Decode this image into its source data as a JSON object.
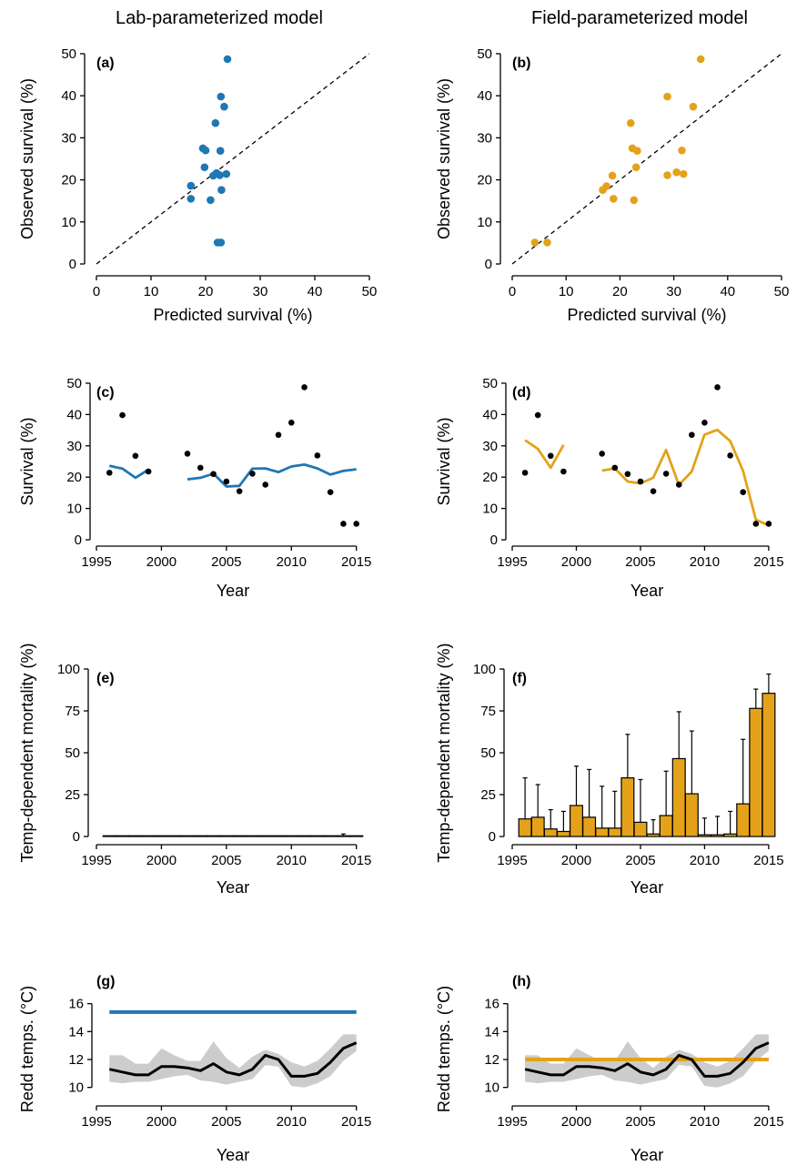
{
  "column_titles": [
    "Lab-parameterized model",
    "Field-parameterized model"
  ],
  "colors": {
    "lab": "#1f77b4",
    "field": "#e3a21a",
    "observed": "#000000",
    "band": "#cccccc"
  },
  "chart_data": [
    {
      "id": "a",
      "label": "(a)",
      "type": "scatter",
      "xlabel": "Predicted survival (%)",
      "ylabel": "Observed survival (%)",
      "xlim": [
        0,
        50
      ],
      "ylim": [
        0,
        50
      ],
      "xticks": [
        0,
        10,
        20,
        30,
        40,
        50
      ],
      "yticks": [
        0,
        10,
        20,
        30,
        40,
        50
      ],
      "reference_line": "1:1 dashed",
      "color_key": "lab",
      "points": [
        [
          24.0,
          48.7
        ],
        [
          22.8,
          39.8
        ],
        [
          23.4,
          37.4
        ],
        [
          21.8,
          33.5
        ],
        [
          19.5,
          27.5
        ],
        [
          20.0,
          27.0
        ],
        [
          22.7,
          26.9
        ],
        [
          22.0,
          21.6
        ],
        [
          23.8,
          21.4
        ],
        [
          22.6,
          21.1
        ],
        [
          21.4,
          21.0
        ],
        [
          19.8,
          23.0
        ],
        [
          17.3,
          18.6
        ],
        [
          22.9,
          17.6
        ],
        [
          17.3,
          15.5
        ],
        [
          20.9,
          15.2
        ],
        [
          22.2,
          5.1
        ],
        [
          22.8,
          5.1
        ]
      ]
    },
    {
      "id": "b",
      "label": "(b)",
      "type": "scatter",
      "xlabel": "Predicted survival (%)",
      "ylabel": "Observed survival (%)",
      "xlim": [
        0,
        50
      ],
      "ylim": [
        0,
        50
      ],
      "xticks": [
        0,
        10,
        20,
        30,
        40,
        50
      ],
      "yticks": [
        0,
        10,
        20,
        30,
        40,
        50
      ],
      "reference_line": "1:1 dashed",
      "color_key": "field",
      "points": [
        [
          35.0,
          48.7
        ],
        [
          28.8,
          39.8
        ],
        [
          33.6,
          37.4
        ],
        [
          22.0,
          33.5
        ],
        [
          22.3,
          27.5
        ],
        [
          23.2,
          26.9
        ],
        [
          31.5,
          27.0
        ],
        [
          23.0,
          23.0
        ],
        [
          18.6,
          21.0
        ],
        [
          28.8,
          21.1
        ],
        [
          30.5,
          21.8
        ],
        [
          31.8,
          21.4
        ],
        [
          17.5,
          18.5
        ],
        [
          16.8,
          17.6
        ],
        [
          18.8,
          15.5
        ],
        [
          22.6,
          15.2
        ],
        [
          4.2,
          5.1
        ],
        [
          6.5,
          5.1
        ]
      ]
    },
    {
      "id": "c",
      "label": "(c)",
      "type": "line",
      "xlabel": "Year",
      "ylabel": "Survival (%)",
      "xlim": [
        1995,
        2016
      ],
      "ylim": [
        0,
        50
      ],
      "xticks": [
        1995,
        2000,
        2005,
        2010,
        2015
      ],
      "yticks": [
        0,
        10,
        20,
        30,
        40,
        50
      ],
      "color_key": "lab",
      "observed": [
        [
          1996,
          21.4
        ],
        [
          1997,
          39.8
        ],
        [
          1998,
          26.8
        ],
        [
          1999,
          21.8
        ],
        [
          2002,
          27.5
        ],
        [
          2003,
          23.0
        ],
        [
          2004,
          21.0
        ],
        [
          2005,
          18.6
        ],
        [
          2006,
          15.5
        ],
        [
          2007,
          21.1
        ],
        [
          2008,
          17.6
        ],
        [
          2009,
          33.5
        ],
        [
          2010,
          37.4
        ],
        [
          2011,
          48.7
        ],
        [
          2012,
          26.9
        ],
        [
          2013,
          15.2
        ],
        [
          2014,
          5.1
        ],
        [
          2015,
          5.1
        ]
      ],
      "predicted_segments": [
        [
          [
            1996,
            23.6
          ],
          [
            1997,
            22.7
          ],
          [
            1998,
            19.8
          ],
          [
            1999,
            22.4
          ]
        ],
        [
          [
            2002,
            19.3
          ],
          [
            2003,
            19.8
          ],
          [
            2004,
            21.1
          ],
          [
            2005,
            17.0
          ],
          [
            2006,
            17.2
          ],
          [
            2007,
            22.7
          ],
          [
            2008,
            22.8
          ],
          [
            2009,
            21.6
          ],
          [
            2010,
            23.4
          ],
          [
            2011,
            24.0
          ],
          [
            2012,
            22.8
          ],
          [
            2013,
            20.8
          ],
          [
            2014,
            22.0
          ],
          [
            2015,
            22.5
          ]
        ]
      ]
    },
    {
      "id": "d",
      "label": "(d)",
      "type": "line",
      "xlabel": "Year",
      "ylabel": "Survival (%)",
      "xlim": [
        1995,
        2016
      ],
      "ylim": [
        0,
        50
      ],
      "xticks": [
        1995,
        2000,
        2005,
        2010,
        2015
      ],
      "yticks": [
        0,
        10,
        20,
        30,
        40,
        50
      ],
      "color_key": "field",
      "observed": [
        [
          1996,
          21.4
        ],
        [
          1997,
          39.8
        ],
        [
          1998,
          26.8
        ],
        [
          1999,
          21.8
        ],
        [
          2002,
          27.5
        ],
        [
          2003,
          23.0
        ],
        [
          2004,
          21.0
        ],
        [
          2005,
          18.6
        ],
        [
          2006,
          15.5
        ],
        [
          2007,
          21.1
        ],
        [
          2008,
          17.6
        ],
        [
          2009,
          33.5
        ],
        [
          2010,
          37.4
        ],
        [
          2011,
          48.7
        ],
        [
          2012,
          26.9
        ],
        [
          2013,
          15.2
        ],
        [
          2014,
          5.1
        ],
        [
          2015,
          5.1
        ]
      ],
      "predicted_segments": [
        [
          [
            1996,
            31.8
          ],
          [
            1997,
            29.0
          ],
          [
            1998,
            23.0
          ],
          [
            1999,
            30.3
          ]
        ],
        [
          [
            2002,
            22.1
          ],
          [
            2003,
            22.8
          ],
          [
            2004,
            18.6
          ],
          [
            2005,
            18.0
          ],
          [
            2006,
            19.8
          ],
          [
            2007,
            28.7
          ],
          [
            2008,
            17.5
          ],
          [
            2009,
            21.8
          ],
          [
            2010,
            33.6
          ],
          [
            2011,
            35.1
          ],
          [
            2012,
            31.5
          ],
          [
            2013,
            22.0
          ],
          [
            2014,
            6.4
          ],
          [
            2015,
            4.6
          ]
        ]
      ]
    },
    {
      "id": "e",
      "label": "(e)",
      "type": "bar",
      "xlabel": "Year",
      "ylabel": "Temp-dependent mortality (%)",
      "xlim": [
        1995,
        2016
      ],
      "ylim": [
        0,
        100
      ],
      "xticks": [
        1995,
        2000,
        2005,
        2010,
        2015
      ],
      "yticks": [
        0,
        25,
        50,
        75,
        100
      ],
      "color_key": "lab",
      "bars": [
        [
          1996,
          0,
          0
        ],
        [
          1997,
          0,
          0
        ],
        [
          1998,
          0,
          0
        ],
        [
          1999,
          0,
          0
        ],
        [
          2000,
          0,
          0
        ],
        [
          2001,
          0,
          0
        ],
        [
          2002,
          0,
          0
        ],
        [
          2003,
          0,
          0
        ],
        [
          2004,
          0,
          0
        ],
        [
          2005,
          0,
          0
        ],
        [
          2006,
          0,
          0
        ],
        [
          2007,
          0,
          0
        ],
        [
          2008,
          0,
          0
        ],
        [
          2009,
          0,
          0
        ],
        [
          2010,
          0,
          0
        ],
        [
          2011,
          0,
          0
        ],
        [
          2012,
          0,
          0
        ],
        [
          2013,
          0,
          0
        ],
        [
          2014,
          0.4,
          1.5
        ],
        [
          2015,
          0,
          0
        ]
      ]
    },
    {
      "id": "f",
      "label": "(f)",
      "type": "bar",
      "xlabel": "Year",
      "ylabel": "Temp-dependent mortality (%)",
      "xlim": [
        1995,
        2016
      ],
      "ylim": [
        0,
        100
      ],
      "xticks": [
        1995,
        2000,
        2005,
        2010,
        2015
      ],
      "yticks": [
        0,
        25,
        50,
        75,
        100
      ],
      "color_key": "field",
      "bars": [
        [
          1996,
          10.5,
          35
        ],
        [
          1997,
          11.5,
          31
        ],
        [
          1998,
          4.5,
          16
        ],
        [
          1999,
          3,
          15
        ],
        [
          2000,
          18.5,
          42
        ],
        [
          2001,
          11.5,
          40
        ],
        [
          2002,
          5,
          30
        ],
        [
          2003,
          5,
          27
        ],
        [
          2004,
          35,
          61
        ],
        [
          2005,
          8.5,
          34
        ],
        [
          2006,
          1.5,
          10
        ],
        [
          2007,
          12.5,
          39
        ],
        [
          2008,
          46.5,
          74.5
        ],
        [
          2009,
          25.5,
          63
        ],
        [
          2010,
          1,
          11
        ],
        [
          2011,
          1,
          12
        ],
        [
          2012,
          1.5,
          15
        ],
        [
          2013,
          19.5,
          58
        ],
        [
          2014,
          76.5,
          88
        ],
        [
          2015,
          85.5,
          97
        ]
      ]
    },
    {
      "id": "g",
      "label": "(g)",
      "type": "line",
      "xlabel": "Year",
      "ylabel": "Redd temps. (°C)",
      "xlim": [
        1995,
        2016
      ],
      "ylim": [
        9,
        16.5
      ],
      "xticks": [
        1995,
        2000,
        2005,
        2010,
        2015
      ],
      "yticks": [
        10,
        12,
        14,
        16
      ],
      "color_key": "lab",
      "threshold": {
        "value": 15.4,
        "x": [
          1996,
          2015
        ]
      },
      "mean": [
        [
          1996,
          11.3
        ],
        [
          1997,
          11.1
        ],
        [
          1998,
          10.9
        ],
        [
          1999,
          10.9
        ],
        [
          2000,
          11.5
        ],
        [
          2001,
          11.5
        ],
        [
          2002,
          11.4
        ],
        [
          2003,
          11.2
        ],
        [
          2004,
          11.7
        ],
        [
          2005,
          11.1
        ],
        [
          2006,
          10.9
        ],
        [
          2007,
          11.3
        ],
        [
          2008,
          12.3
        ],
        [
          2009,
          12.0
        ],
        [
          2010,
          10.8
        ],
        [
          2011,
          10.8
        ],
        [
          2012,
          11.0
        ],
        [
          2013,
          11.8
        ],
        [
          2014,
          12.8
        ],
        [
          2015,
          13.2
        ]
      ],
      "band_upper": [
        12.3,
        12.3,
        11.7,
        11.7,
        12.8,
        12.3,
        11.9,
        11.9,
        13.3,
        12.1,
        11.4,
        12.2,
        12.7,
        12.4,
        11.8,
        11.5,
        11.9,
        12.8,
        13.8,
        13.8
      ],
      "band_lower": [
        10.4,
        10.3,
        10.4,
        10.4,
        10.6,
        10.8,
        10.9,
        10.5,
        10.4,
        10.2,
        10.4,
        10.6,
        11.6,
        11.5,
        10.1,
        10.0,
        10.3,
        10.8,
        11.9,
        12.6
      ]
    },
    {
      "id": "h",
      "label": "(h)",
      "type": "line",
      "xlabel": "Year",
      "ylabel": "Redd temps. (°C)",
      "xlim": [
        1995,
        2016
      ],
      "ylim": [
        9,
        16.5
      ],
      "xticks": [
        1995,
        2000,
        2005,
        2010,
        2015
      ],
      "yticks": [
        10,
        12,
        14,
        16
      ],
      "color_key": "field",
      "threshold": {
        "value": 12.0,
        "x": [
          1996,
          2015
        ]
      },
      "mean": [
        [
          1996,
          11.3
        ],
        [
          1997,
          11.1
        ],
        [
          1998,
          10.9
        ],
        [
          1999,
          10.9
        ],
        [
          2000,
          11.5
        ],
        [
          2001,
          11.5
        ],
        [
          2002,
          11.4
        ],
        [
          2003,
          11.2
        ],
        [
          2004,
          11.7
        ],
        [
          2005,
          11.1
        ],
        [
          2006,
          10.9
        ],
        [
          2007,
          11.3
        ],
        [
          2008,
          12.3
        ],
        [
          2009,
          12.0
        ],
        [
          2010,
          10.8
        ],
        [
          2011,
          10.8
        ],
        [
          2012,
          11.0
        ],
        [
          2013,
          11.8
        ],
        [
          2014,
          12.8
        ],
        [
          2015,
          13.2
        ]
      ],
      "band_upper": [
        12.3,
        12.3,
        11.7,
        11.7,
        12.8,
        12.3,
        11.9,
        11.9,
        13.3,
        12.1,
        11.4,
        12.2,
        12.7,
        12.4,
        11.8,
        11.5,
        11.9,
        12.8,
        13.8,
        13.8
      ],
      "band_lower": [
        10.4,
        10.3,
        10.4,
        10.4,
        10.6,
        10.8,
        10.9,
        10.5,
        10.4,
        10.2,
        10.4,
        10.6,
        11.6,
        11.5,
        10.1,
        10.0,
        10.3,
        10.8,
        11.9,
        12.6
      ]
    }
  ]
}
